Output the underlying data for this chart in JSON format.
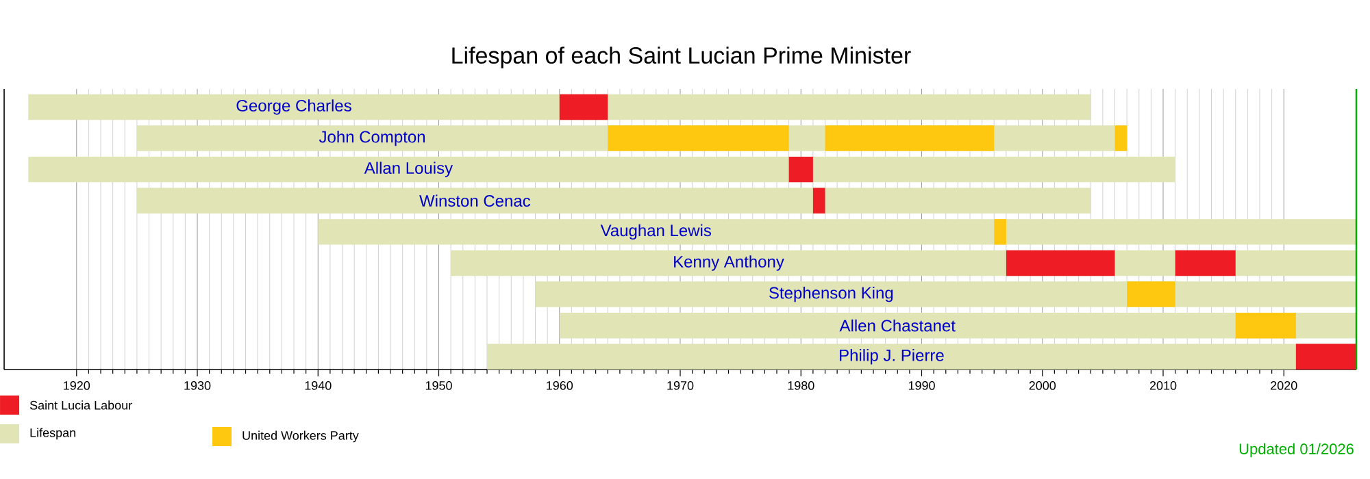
{
  "chart_data": {
    "type": "bar",
    "orientation": "horizontal",
    "title": "Lifespan of each Saint Lucian Prime Minister",
    "categories": [
      "George Charles",
      "John Compton",
      "Allan Louisy",
      "Winston Cenac",
      "Vaughan Lewis",
      "Kenny Anthony",
      "Stephenson King",
      "Allen Chastanet",
      "Philip J. Pierre"
    ],
    "series": [
      {
        "name": "Lifespan",
        "color": "#e1e4b5",
        "base": [
          1916,
          1925,
          1916,
          1925,
          1940,
          1951,
          1958,
          1960,
          1954
        ],
        "values": [
          88,
          82,
          95,
          79,
          86,
          75,
          68,
          66,
          72
        ]
      },
      {
        "name": "Saint Lucia Labour",
        "color": "#ee1c24",
        "base": [
          1960,
          null,
          1979,
          1981,
          null,
          1997,
          null,
          null,
          2021
        ],
        "values": [
          4,
          null,
          2,
          1,
          null,
          9,
          null,
          null,
          5
        ]
      },
      {
        "color": "#ee1c24",
        "base": [
          null,
          null,
          null,
          null,
          null,
          2011,
          null,
          null,
          null
        ],
        "values": [
          null,
          null,
          null,
          null,
          null,
          5,
          null,
          null,
          null
        ]
      },
      {
        "name": "United Workers Party",
        "color": "#fec810",
        "base": [
          null,
          1964,
          null,
          null,
          1996,
          null,
          2007,
          2016,
          null
        ],
        "values": [
          null,
          15,
          null,
          null,
          1,
          null,
          4,
          5,
          null
        ]
      },
      {
        "color": "#fec810",
        "base": [
          null,
          1982,
          null,
          null,
          null,
          null,
          null,
          null,
          null
        ],
        "values": [
          null,
          14,
          null,
          null,
          null,
          null,
          null,
          null,
          null
        ]
      },
      {
        "color": "#fec810",
        "base": [
          null,
          2006,
          null,
          null,
          null,
          null,
          null,
          null,
          null
        ],
        "values": [
          null,
          1,
          null,
          null,
          null,
          null,
          null,
          null,
          null
        ]
      }
    ],
    "xlim": [
      1914,
      2026
    ],
    "xticks": [
      1920,
      1930,
      1940,
      1950,
      1960,
      1970,
      1980,
      1990,
      2000,
      2010,
      2020
    ],
    "grid": "x",
    "legend": "bottom left",
    "ref_lines": [
      {
        "axis": "x",
        "value": 2026,
        "color": "#00b000"
      }
    ],
    "annotations": [
      "Updated 01/2026"
    ]
  }
}
